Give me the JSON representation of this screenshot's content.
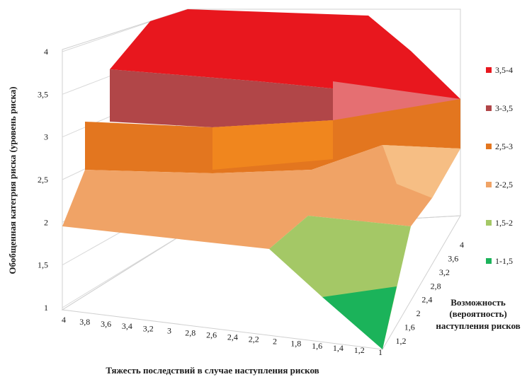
{
  "chart_data": {
    "type": "surface",
    "title": "",
    "xlabel": "Тяжесть последствий  в случае наступления рисков",
    "ylabel": "Обобщенная категрия риска (уровень риска)",
    "zlabel_lines": [
      "Возможность",
      "(вероятность)",
      "наступления рисков"
    ],
    "x_ticks": [
      "4",
      "3,8",
      "3,6",
      "3,4",
      "3,2",
      "3",
      "2,8",
      "2,6",
      "2,4",
      "2,2",
      "2",
      "1,8",
      "1,6",
      "1,4",
      "1,2",
      "1"
    ],
    "depth_ticks": [
      "1,2",
      "1,6",
      "2",
      "2,4",
      "2,8",
      "3,2",
      "3,6",
      "4"
    ],
    "value_ticks": [
      "1",
      "1,5",
      "2",
      "2,5",
      "3",
      "3,5",
      "4"
    ],
    "value_range": [
      1,
      4
    ],
    "legend": [
      {
        "label": "3,5-4",
        "color": "#e8171e"
      },
      {
        "label": "3-3,5",
        "color": "#b14648"
      },
      {
        "label": "2,5-3",
        "color": "#e3761f"
      },
      {
        "label": "2-2,5",
        "color": "#f0a366"
      },
      {
        "label": "1,5-2",
        "color": "#a4c866"
      },
      {
        "label": "1-1,5",
        "color": "#1bb35a"
      }
    ],
    "bands": [
      {
        "band": "1-1,5",
        "color": "#1bb35a"
      },
      {
        "band": "1,5-2",
        "color": "#a4c866"
      },
      {
        "band": "2-2,5",
        "color": "#f0a366"
      },
      {
        "band": "2,5-3",
        "color": "#e3761f"
      },
      {
        "band": "3-3,5",
        "color": "#b14648"
      },
      {
        "band": "3,5-4",
        "color": "#e8171e"
      }
    ]
  }
}
